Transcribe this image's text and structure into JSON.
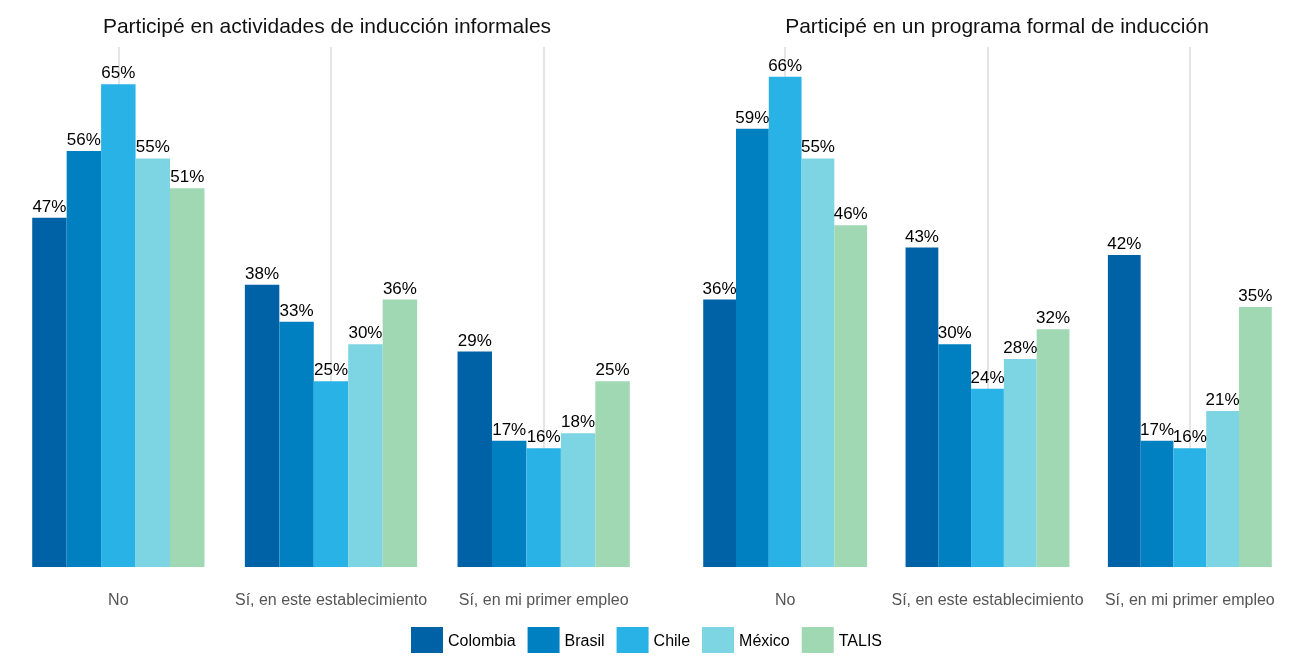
{
  "chart_data": [
    {
      "type": "bar",
      "title": "Participé en actividades de inducción informales",
      "categories": [
        "No",
        "Sí, en este establecimiento",
        "Sí, en mi primer empleo"
      ],
      "grid": "x",
      "series": [
        {
          "color": "#0062a6",
          "values": [
            47,
            38,
            29
          ],
          "value_labels": [
            "47%",
            "38%",
            "29%"
          ]
        },
        {
          "color": "#0080c0",
          "values": [
            56,
            33,
            17
          ],
          "value_labels": [
            "56%",
            "33%",
            "17%"
          ]
        },
        {
          "color": "#29b2e6",
          "values": [
            65,
            25,
            16
          ],
          "value_labels": [
            "65%",
            "25%",
            "16%"
          ]
        },
        {
          "color": "#7dd4e2",
          "values": [
            55,
            30,
            18
          ],
          "value_labels": [
            "55%",
            "30%",
            "18%"
          ]
        },
        {
          "color": "#9fd8b3",
          "values": [
            51,
            36,
            25
          ],
          "value_labels": [
            "51%",
            "36%",
            "25%"
          ]
        }
      ]
    },
    {
      "type": "bar",
      "title": "Participé en un programa formal de inducción",
      "categories": [
        "No",
        "Sí, en este establecimiento",
        "Sí, en mi primer empleo"
      ],
      "grid": "x",
      "legend": "bottom",
      "series": [
        {
          "name": "Colombia",
          "color": "#0062a6",
          "values": [
            36,
            43,
            42
          ],
          "value_labels": [
            "36%",
            "43%",
            "42%"
          ]
        },
        {
          "name": "Brasil",
          "color": "#0080c0",
          "values": [
            59,
            30,
            17
          ],
          "value_labels": [
            "59%",
            "30%",
            "17%"
          ]
        },
        {
          "name": "Chile",
          "color": "#29b2e6",
          "values": [
            66,
            24,
            16
          ],
          "value_labels": [
            "66%",
            "24%",
            "16%"
          ]
        },
        {
          "name": "México",
          "color": "#7dd4e2",
          "values": [
            55,
            28,
            21
          ],
          "value_labels": [
            "55%",
            "28%",
            "21%"
          ]
        },
        {
          "name": "TALIS",
          "color": "#9fd8b3",
          "values": [
            46,
            32,
            35
          ],
          "value_labels": [
            "46%",
            "32%",
            "35%"
          ]
        }
      ]
    }
  ]
}
